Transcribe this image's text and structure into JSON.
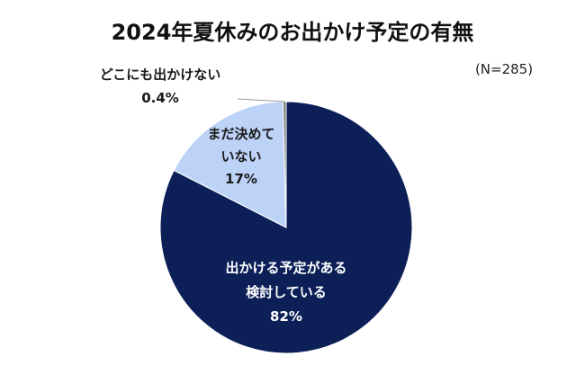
{
  "chart_data": {
    "type": "pie",
    "title": "2024年夏休みのお出かけ予定の有無",
    "sample_note": "(N=285)",
    "colors": {
      "main": "#0c1f57",
      "undecided": "#bcd2f7",
      "none": "#7f7f7f",
      "label_light": "#ffffff",
      "label_dark": "#1a1a1a"
    },
    "slices": [
      {
        "label_lines": [
          "出かける予定がある",
          "検討している"
        ],
        "value": 82,
        "percent_text": "82%"
      },
      {
        "label_lines": [
          "まだ決めて",
          "いない"
        ],
        "value": 17,
        "percent_text": "17%"
      },
      {
        "label_lines": [
          "どこにも出かけない"
        ],
        "value": 0.4,
        "percent_text": "0.4%"
      }
    ]
  }
}
